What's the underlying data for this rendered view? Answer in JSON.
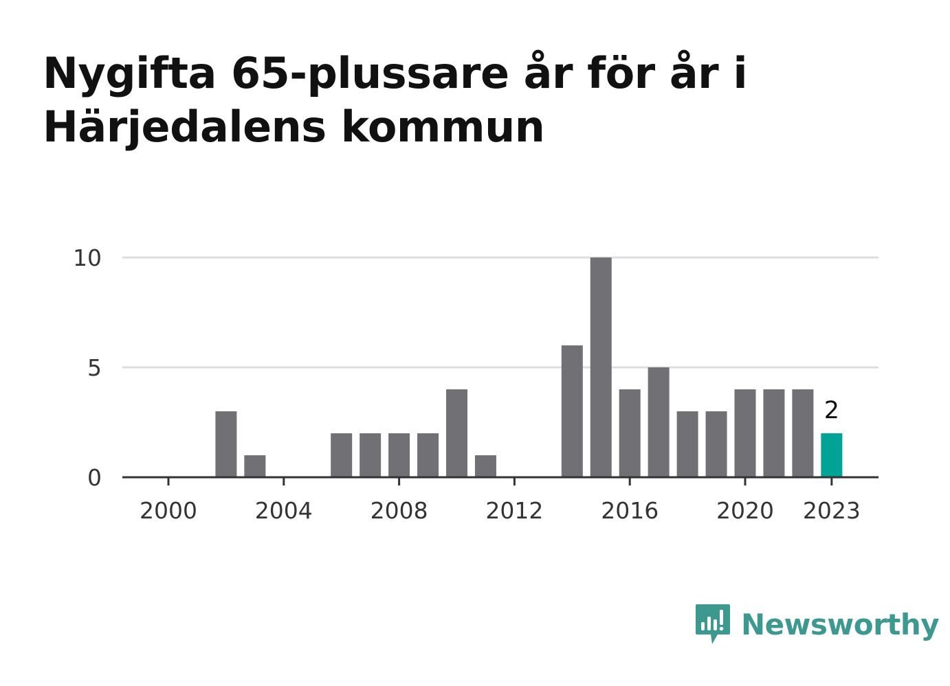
{
  "title": "Nygifta 65-plussare år för år i Härjedalens kommun",
  "brand": {
    "name": "Newsworthy",
    "icon": "newsworthy-logo-icon"
  },
  "colors": {
    "bar": "#707075",
    "highlight": "#00a396",
    "grid": "#dddddd",
    "axis": "#333333",
    "brand": "#3d9990"
  },
  "chart_data": {
    "type": "bar",
    "title": "Nygifta 65-plussare år för år i Härjedalens kommun",
    "xlabel": "",
    "ylabel": "",
    "x": [
      2000,
      2001,
      2002,
      2003,
      2004,
      2005,
      2006,
      2007,
      2008,
      2009,
      2010,
      2011,
      2012,
      2013,
      2014,
      2015,
      2016,
      2017,
      2018,
      2019,
      2020,
      2021,
      2022,
      2023
    ],
    "values": [
      0,
      0,
      3,
      1,
      0,
      0,
      2,
      2,
      2,
      2,
      4,
      1,
      0,
      0,
      6,
      10,
      4,
      5,
      3,
      3,
      4,
      4,
      4,
      2
    ],
    "ylim": [
      0,
      10
    ],
    "yticks": [
      "0",
      "5",
      "10"
    ],
    "xticks": [
      "2000",
      "2004",
      "2008",
      "2012",
      "2016",
      "2020",
      "2023"
    ],
    "highlight": {
      "x": 2023,
      "label": "2"
    },
    "grid": true,
    "legend": "none"
  }
}
